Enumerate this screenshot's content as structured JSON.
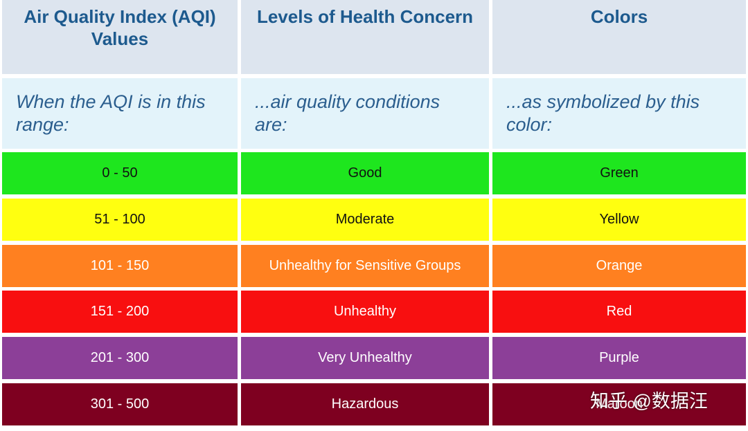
{
  "table": {
    "header": [
      "Air Quality Index (AQI) Values",
      "Levels of Health Concern",
      "Colors"
    ],
    "subheader": [
      "When the AQI is in this range:",
      "...air quality conditions are:",
      "...as symbolized by this color:"
    ],
    "rows": [
      [
        "0 - 50",
        "Good",
        "Green"
      ],
      [
        "51 - 100",
        "Moderate",
        "Yellow"
      ],
      [
        "101 - 150",
        "Unhealthy for Sensitive Groups",
        "Orange"
      ],
      [
        "151 - 200",
        "Unhealthy",
        "Red"
      ],
      [
        "201 - 300",
        "Very Unhealthy",
        "Purple"
      ],
      [
        "301 - 500",
        "Hazardous",
        "Maroon"
      ]
    ]
  },
  "watermark": "知乎 @数据汪"
}
